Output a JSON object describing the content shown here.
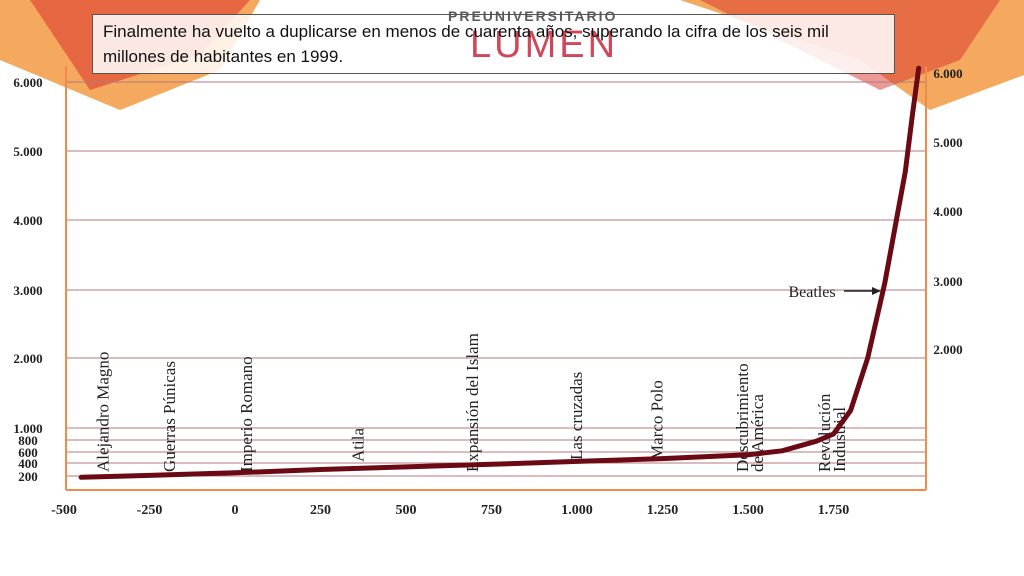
{
  "logo": {
    "top_text": "PREUNIVERSITARIO",
    "main_text": "LUMEN"
  },
  "caption": "Finalmente ha vuelto a duplicarse en menos de cuarenta años, superando la cifra de los seis mil millones de habitantes en 1999.",
  "colors": {
    "curve": "#6b0a14",
    "axis": "#f08a4b",
    "grid": "#b07a82",
    "decor_orange": "#f28c28",
    "decor_red": "#d9312b"
  },
  "chart_data": {
    "type": "line",
    "xlim": [
      -500,
      2000
    ],
    "ylim": [
      200,
      6200
    ],
    "x_tick_labels": [
      "-500",
      "-250",
      "0",
      "250",
      "500",
      "750",
      "1.000",
      "1.250",
      "1.500",
      "1.750"
    ],
    "x_tick_values": [
      -500,
      -250,
      0,
      250,
      500,
      750,
      1000,
      1250,
      1500,
      1750
    ],
    "y_tick_labels_left": [
      "200",
      "400",
      "600",
      "800",
      "1.000",
      "2.000",
      "3.000",
      "4.000",
      "5.000",
      "6.000"
    ],
    "y_tick_values_left": [
      200,
      400,
      600,
      800,
      1000,
      2000,
      3000,
      4000,
      5000,
      6000
    ],
    "y_tick_labels_right": [
      "2.000",
      "3.000",
      "4.000",
      "5.000",
      "6.000"
    ],
    "y_tick_values_right": [
      2000,
      3000,
      4000,
      5000,
      6000
    ],
    "grid": true,
    "series": [
      {
        "x": [
          -450,
          -250,
          0,
          250,
          500,
          750,
          1000,
          1250,
          1500,
          1600,
          1700,
          1750,
          1800,
          1850,
          1900,
          1930,
          1960,
          1980,
          1999
        ],
        "y": [
          180,
          210,
          250,
          300,
          340,
          380,
          430,
          480,
          550,
          620,
          780,
          900,
          1250,
          2000,
          3100,
          3900,
          4700,
          5500,
          6200
        ]
      }
    ],
    "annotations": [
      {
        "text": "Alejandro Magno",
        "x": -370
      },
      {
        "text": "Guerras Púnicas",
        "x": -175
      },
      {
        "text": "Imperio Romano",
        "x": 50
      },
      {
        "text": "Atila",
        "x": 375
      },
      {
        "text": "Expansión del Islam",
        "x": 710
      },
      {
        "text": "Las cruzadas",
        "x": 1015
      },
      {
        "text": "Marco Polo",
        "x": 1250
      },
      {
        "text": "Descubrimiento de América",
        "x": 1520
      },
      {
        "text": "Revolución Industrial",
        "x": 1760
      }
    ],
    "beatles_label": "Beatles"
  }
}
